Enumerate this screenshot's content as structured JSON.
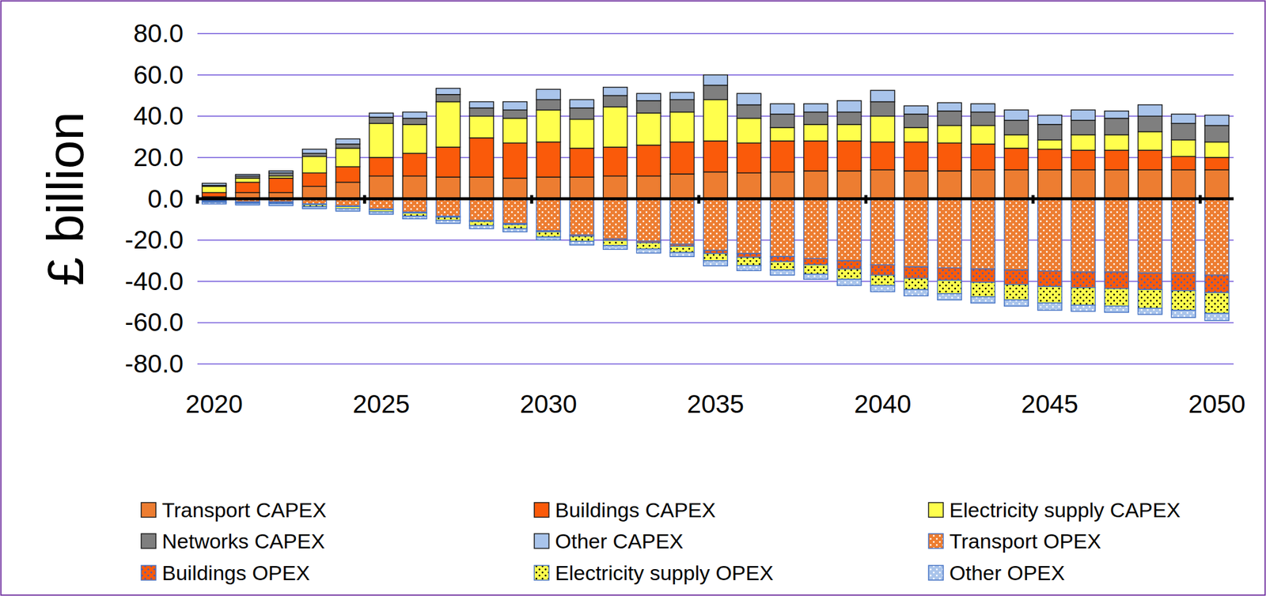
{
  "chart_data": {
    "type": "bar",
    "stacked": true,
    "grid": true,
    "legend": "bottom",
    "y_label": "£ billion",
    "categories": [
      "2020",
      null,
      null,
      null,
      null,
      "2025",
      null,
      null,
      null,
      null,
      "2030",
      null,
      null,
      null,
      null,
      "2035",
      null,
      null,
      null,
      null,
      "2040",
      null,
      null,
      null,
      null,
      "2045",
      null,
      null,
      null,
      null,
      "2050"
    ],
    "ylim": [
      -80,
      80
    ],
    "yticks": [
      {
        "value": -80,
        "label": "-80.0"
      },
      {
        "value": -60,
        "label": "-60.0"
      },
      {
        "value": -40,
        "label": "-40.0"
      },
      {
        "value": -20,
        "label": "-20.0"
      },
      {
        "value": 0,
        "label": "0.0"
      },
      {
        "value": 20,
        "label": "20.0"
      },
      {
        "value": 40,
        "label": "40.0"
      },
      {
        "value": 60,
        "label": "60.0"
      },
      {
        "value": 80,
        "label": "80.0"
      }
    ],
    "series": [
      {
        "name": "Transport CAPEX",
        "color": "#ed7d31",
        "values": [
          1,
          3,
          3,
          6,
          8,
          11,
          11,
          10.5,
          10.5,
          10,
          10.5,
          10.5,
          11,
          11,
          12,
          13,
          12.5,
          13,
          13.5,
          13.5,
          14,
          13.5,
          13.5,
          14,
          14,
          14,
          14,
          14,
          14,
          14,
          14
        ]
      },
      {
        "name": "Buildings CAPEX",
        "color": "#fa5a0a",
        "values": [
          2,
          5,
          7,
          6.5,
          7.5,
          9,
          11,
          14.5,
          19,
          17,
          17,
          14,
          14,
          15,
          15.5,
          15,
          14.5,
          15,
          14.5,
          14.5,
          13.5,
          14,
          13.5,
          12.5,
          10.5,
          10,
          9.5,
          9.5,
          9.5,
          6.5,
          6
        ]
      },
      {
        "name": "Electricity supply CAPEX",
        "color": "#ffff4d",
        "values": [
          3,
          2,
          1,
          8,
          9,
          16.5,
          14,
          22,
          10.5,
          12,
          15.5,
          14,
          19.5,
          15.5,
          14.5,
          20,
          12,
          6.5,
          8,
          8,
          12.5,
          7,
          8.5,
          9,
          6.5,
          4.5,
          7.5,
          7.5,
          9,
          8,
          7.5
        ]
      },
      {
        "name": "Networks CAPEX",
        "color": "#7f7f7f",
        "values": [
          0.5,
          1,
          1.5,
          1.5,
          2,
          3,
          3,
          3.5,
          4,
          4,
          5,
          5.5,
          5.5,
          6,
          6,
          7,
          6.5,
          6.5,
          6,
          6,
          7,
          6.5,
          7,
          6.5,
          7,
          7.5,
          7,
          8,
          7.5,
          8,
          8
        ]
      },
      {
        "name": "Other CAPEX",
        "color": "#a9c4eb",
        "values": [
          1,
          0.8,
          1,
          2,
          2.5,
          2,
          3,
          3,
          3,
          4,
          5,
          4,
          4,
          3.5,
          3.5,
          5,
          5.5,
          5,
          4,
          5.5,
          5.5,
          4,
          4,
          4,
          5,
          4.5,
          5,
          3.5,
          5.5,
          4.5,
          5
        ]
      },
      {
        "name": "Transport OPEX",
        "color": "#ed7d31",
        "values": [
          -1,
          -1.5,
          -1.5,
          -2.5,
          -3.5,
          -5,
          -6.5,
          -8.5,
          -10.5,
          -12,
          -15.5,
          -17.5,
          -19.5,
          -20.5,
          -22,
          -25,
          -26.5,
          -28,
          -29,
          -30,
          -32,
          -33,
          -33.5,
          -34,
          -34.5,
          -35,
          -35.5,
          -35.5,
          -36,
          -36,
          -37
        ]
      },
      {
        "name": "Buildings OPEX",
        "color": "#fa5a0a",
        "values": [
          -0.2,
          -0.2,
          -0.3,
          -0.3,
          -0.3,
          -0.3,
          -0.4,
          -0.4,
          -0.5,
          -0.5,
          -0.5,
          -0.6,
          -0.7,
          -0.8,
          -1,
          -1.5,
          -1.8,
          -2.5,
          -3,
          -4,
          -5,
          -5.5,
          -6,
          -6.5,
          -7,
          -7.5,
          -7.5,
          -8,
          -8,
          -8.5,
          -8.5
        ]
      },
      {
        "name": "Electricity supply OPEX",
        "color": "#ffff4d",
        "values": [
          -0.5,
          -0.5,
          -0.5,
          -1,
          -1,
          -1,
          -1.5,
          -1.5,
          -2,
          -2,
          -2.5,
          -2.5,
          -2.5,
          -3,
          -3,
          -3.5,
          -4,
          -4,
          -4.5,
          -5,
          -5,
          -5.5,
          -6.5,
          -7,
          -7.5,
          -8,
          -8.5,
          -8.5,
          -9,
          -9.5,
          -10
        ]
      },
      {
        "name": "Other OPEX",
        "color": "#a9c4eb",
        "values": [
          -0.8,
          -0.8,
          -1,
          -1,
          -1.2,
          -1.2,
          -1.3,
          -1.5,
          -1.5,
          -1.5,
          -1.5,
          -1.8,
          -1.8,
          -2,
          -2,
          -2.5,
          -2.5,
          -2.5,
          -2.5,
          -3,
          -3,
          -3,
          -3,
          -3,
          -3,
          -3.5,
          -3,
          -3,
          -3,
          -3.5,
          -3.5
        ]
      }
    ]
  }
}
